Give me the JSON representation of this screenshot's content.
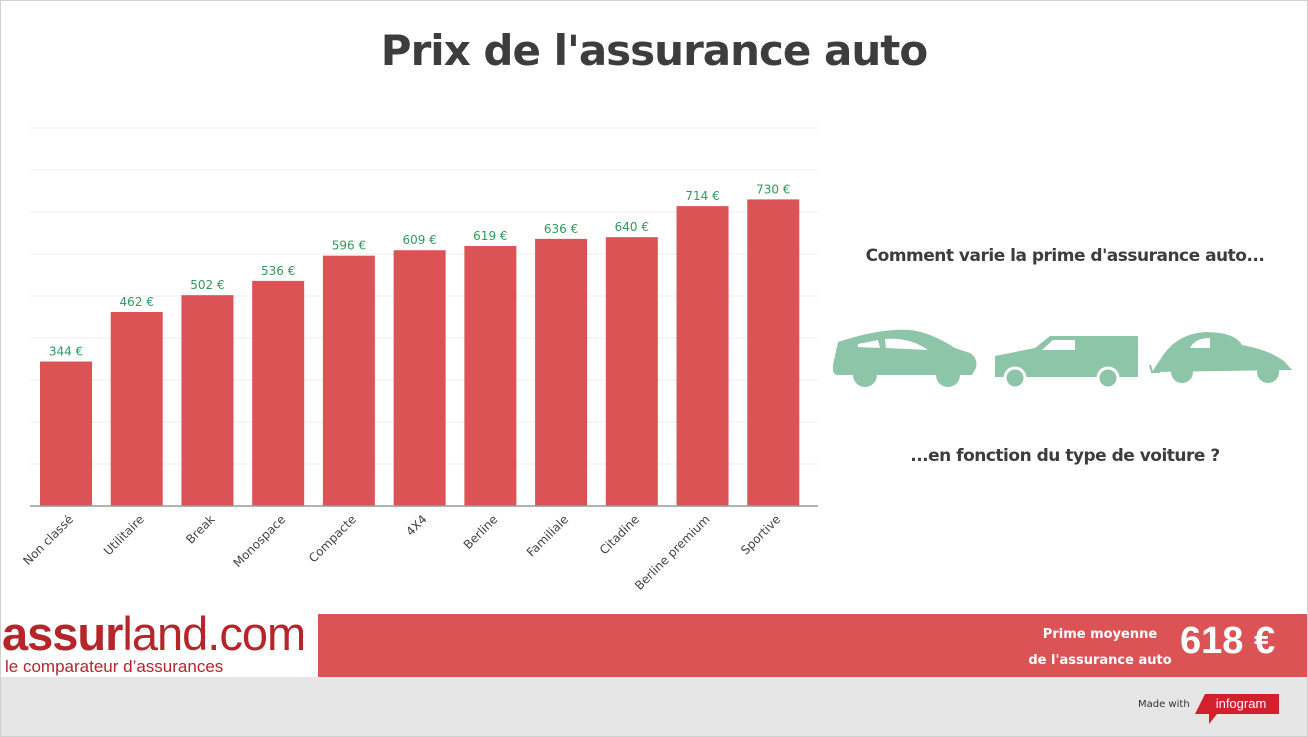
{
  "title": "Prix de l'assurance auto",
  "chart_data": {
    "type": "bar",
    "title": "",
    "xlabel": "",
    "ylabel": "",
    "ylim": [
      0,
      900
    ],
    "grid": true,
    "categories": [
      "Non classé",
      "Utilitaire",
      "Break",
      "Monospace",
      "Compacte",
      "4X4",
      "Berline",
      "Familiale",
      "Citadine",
      "Berline premium",
      "Sportive"
    ],
    "values": [
      344,
      462,
      502,
      536,
      596,
      609,
      619,
      636,
      640,
      714,
      730
    ],
    "data_labels": [
      "344 €",
      "462 €",
      "502 €",
      "536 €",
      "596 €",
      "609 €",
      "619 €",
      "636 €",
      "640 €",
      "714 €",
      "730 €"
    ],
    "bar_color": "#dc5356",
    "label_color": "#2e9a5c"
  },
  "side": {
    "question_top": "Comment varie la prime d'assurance auto...",
    "question_bottom": "...en fonction du type de voiture ?",
    "car_icons": [
      "sedan-icon",
      "van-icon",
      "beetle-icon"
    ],
    "car_color": "#8dc5a8"
  },
  "footer": {
    "logo_text": "assurland.com",
    "logo_tagline": "le comparateur d’assurances",
    "avg_label_1": "Prime moyenne",
    "avg_label_2": "de l'assurance auto",
    "avg_value": "618 €",
    "made_with": "Made with",
    "infogram": "infogram"
  }
}
